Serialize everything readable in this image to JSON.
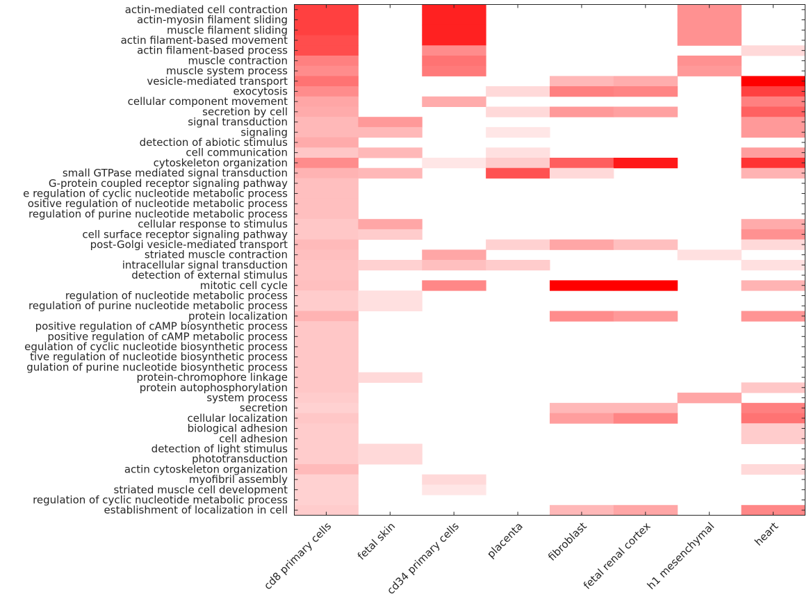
{
  "chart_data": {
    "type": "heatmap",
    "colormap": {
      "low": "#ffffff",
      "high": "#ff0000"
    },
    "value_range": [
      0,
      1
    ],
    "grid": false,
    "columns": [
      "cd8 primary cells",
      "fetal skin",
      "cd34 primary cells",
      "placenta",
      "fibroblast",
      "fetal renal cortex",
      "h1 mesenchymal",
      "heart"
    ],
    "rows": [
      "actin-mediated cell contraction",
      "actin-myosin filament sliding",
      "muscle filament sliding",
      "actin filament-based movement",
      "actin filament-based process",
      "muscle contraction",
      "muscle system process",
      "vesicle-mediated transport",
      "exocytosis",
      "cellular component movement",
      "secretion by cell",
      "signal transduction",
      "signaling",
      "detection of abiotic stimulus",
      "cell communication",
      "cytoskeleton organization",
      "small GTPase mediated signal transduction",
      "G-protein coupled receptor signaling pathway",
      "e regulation of cyclic nucleotide metabolic process",
      "ositive regulation of nucleotide metabolic process",
      "regulation of purine nucleotide metabolic process",
      "cellular response to stimulus",
      "cell surface receptor signaling pathway",
      "post-Golgi vesicle-mediated transport",
      "striated muscle contraction",
      "intracellular signal transduction",
      "detection of external stimulus",
      "mitotic cell cycle",
      "regulation of nucleotide metabolic process",
      "regulation of purine nucleotide metabolic process",
      "protein localization",
      "positive regulation of cAMP biosynthetic process",
      "positive regulation of cAMP metabolic process",
      "egulation of cyclic nucleotide biosynthetic process",
      "tive regulation of nucleotide biosynthetic process",
      "gulation of purine nucleotide biosynthetic process",
      "protein-chromophore linkage",
      "protein autophosphorylation",
      "system process",
      "secretion",
      "cellular localization",
      "biological adhesion",
      "cell adhesion",
      "detection of light stimulus",
      "phototransduction",
      "actin cytoskeleton organization",
      "myofibril assembly",
      "striated muscle cell development",
      "regulation of cyclic nucleotide metabolic process",
      "establishment of localization in cell"
    ],
    "values": [
      [
        0.75,
        0,
        0.87,
        0,
        0,
        0,
        0.43,
        0
      ],
      [
        0.75,
        0,
        0.87,
        0,
        0,
        0,
        0.43,
        0
      ],
      [
        0.75,
        0,
        0.87,
        0,
        0,
        0,
        0.43,
        0
      ],
      [
        0.7,
        0,
        0.87,
        0,
        0,
        0,
        0.43,
        0
      ],
      [
        0.7,
        0,
        0.45,
        0,
        0,
        0,
        0,
        0.15
      ],
      [
        0.5,
        0,
        0.55,
        0,
        0,
        0,
        0.43,
        0
      ],
      [
        0.45,
        0,
        0.52,
        0,
        0,
        0,
        0.4,
        0
      ],
      [
        0.55,
        0,
        0,
        0,
        0.28,
        0.32,
        0,
        1.0
      ],
      [
        0.45,
        0,
        0,
        0.15,
        0.5,
        0.48,
        0,
        0.75
      ],
      [
        0.35,
        0,
        0.33,
        0,
        0,
        0,
        0,
        0.5
      ],
      [
        0.33,
        0,
        0,
        0.15,
        0.4,
        0.37,
        0,
        0.62
      ],
      [
        0.28,
        0.4,
        0,
        0,
        0,
        0,
        0,
        0.4
      ],
      [
        0.28,
        0.28,
        0,
        0.1,
        0,
        0,
        0,
        0.4
      ],
      [
        0.33,
        0,
        0,
        0,
        0,
        0,
        0,
        0
      ],
      [
        0.22,
        0.28,
        0,
        0.12,
        0,
        0,
        0,
        0.38
      ],
      [
        0.45,
        0,
        0.1,
        0.2,
        0.63,
        0.9,
        0,
        0.8
      ],
      [
        0.3,
        0.28,
        0,
        0.68,
        0.15,
        0,
        0,
        0.3
      ],
      [
        0.25,
        0,
        0,
        0,
        0,
        0,
        0,
        0
      ],
      [
        0.25,
        0,
        0,
        0,
        0,
        0,
        0,
        0
      ],
      [
        0.25,
        0,
        0,
        0,
        0,
        0,
        0,
        0
      ],
      [
        0.25,
        0,
        0,
        0,
        0,
        0,
        0,
        0
      ],
      [
        0.22,
        0.35,
        0,
        0,
        0,
        0,
        0,
        0.33
      ],
      [
        0.22,
        0.2,
        0,
        0,
        0,
        0,
        0,
        0.43
      ],
      [
        0.27,
        0,
        0,
        0.18,
        0.35,
        0.25,
        0,
        0.15
      ],
      [
        0.25,
        0,
        0.35,
        0,
        0,
        0,
        0.12,
        0
      ],
      [
        0.24,
        0.18,
        0.25,
        0.2,
        0,
        0,
        0,
        0.12
      ],
      [
        0.24,
        0,
        0,
        0,
        0,
        0,
        0,
        0
      ],
      [
        0.25,
        0,
        0.47,
        0,
        1.0,
        1.0,
        0,
        0.3
      ],
      [
        0.2,
        0.12,
        0,
        0,
        0,
        0,
        0,
        0
      ],
      [
        0.2,
        0.12,
        0,
        0,
        0,
        0,
        0,
        0
      ],
      [
        0.3,
        0,
        0,
        0,
        0.45,
        0.4,
        0,
        0.42
      ],
      [
        0.22,
        0,
        0,
        0,
        0,
        0,
        0,
        0
      ],
      [
        0.22,
        0,
        0,
        0,
        0,
        0,
        0,
        0
      ],
      [
        0.22,
        0,
        0,
        0,
        0,
        0,
        0,
        0
      ],
      [
        0.22,
        0,
        0,
        0,
        0,
        0,
        0,
        0
      ],
      [
        0.22,
        0,
        0,
        0,
        0,
        0,
        0,
        0
      ],
      [
        0.22,
        0.15,
        0,
        0,
        0,
        0,
        0,
        0
      ],
      [
        0.22,
        0,
        0,
        0,
        0,
        0,
        0,
        0.22
      ],
      [
        0.2,
        0,
        0,
        0,
        0,
        0,
        0.35,
        0
      ],
      [
        0.18,
        0,
        0,
        0,
        0.28,
        0.28,
        0,
        0.5
      ],
      [
        0.22,
        0,
        0,
        0,
        0.38,
        0.48,
        0,
        0.55
      ],
      [
        0.2,
        0,
        0,
        0,
        0,
        0,
        0,
        0.2
      ],
      [
        0.2,
        0,
        0,
        0,
        0,
        0,
        0,
        0.2
      ],
      [
        0.2,
        0.15,
        0,
        0,
        0,
        0,
        0,
        0
      ],
      [
        0.2,
        0.15,
        0,
        0,
        0,
        0,
        0,
        0
      ],
      [
        0.27,
        0,
        0,
        0,
        0,
        0,
        0,
        0.15
      ],
      [
        0.18,
        0,
        0.15,
        0,
        0,
        0,
        0,
        0
      ],
      [
        0.18,
        0,
        0.1,
        0,
        0,
        0,
        0,
        0
      ],
      [
        0.18,
        0,
        0,
        0,
        0,
        0,
        0,
        0
      ],
      [
        0.2,
        0,
        0,
        0,
        0.28,
        0.35,
        0,
        0.47
      ]
    ]
  }
}
